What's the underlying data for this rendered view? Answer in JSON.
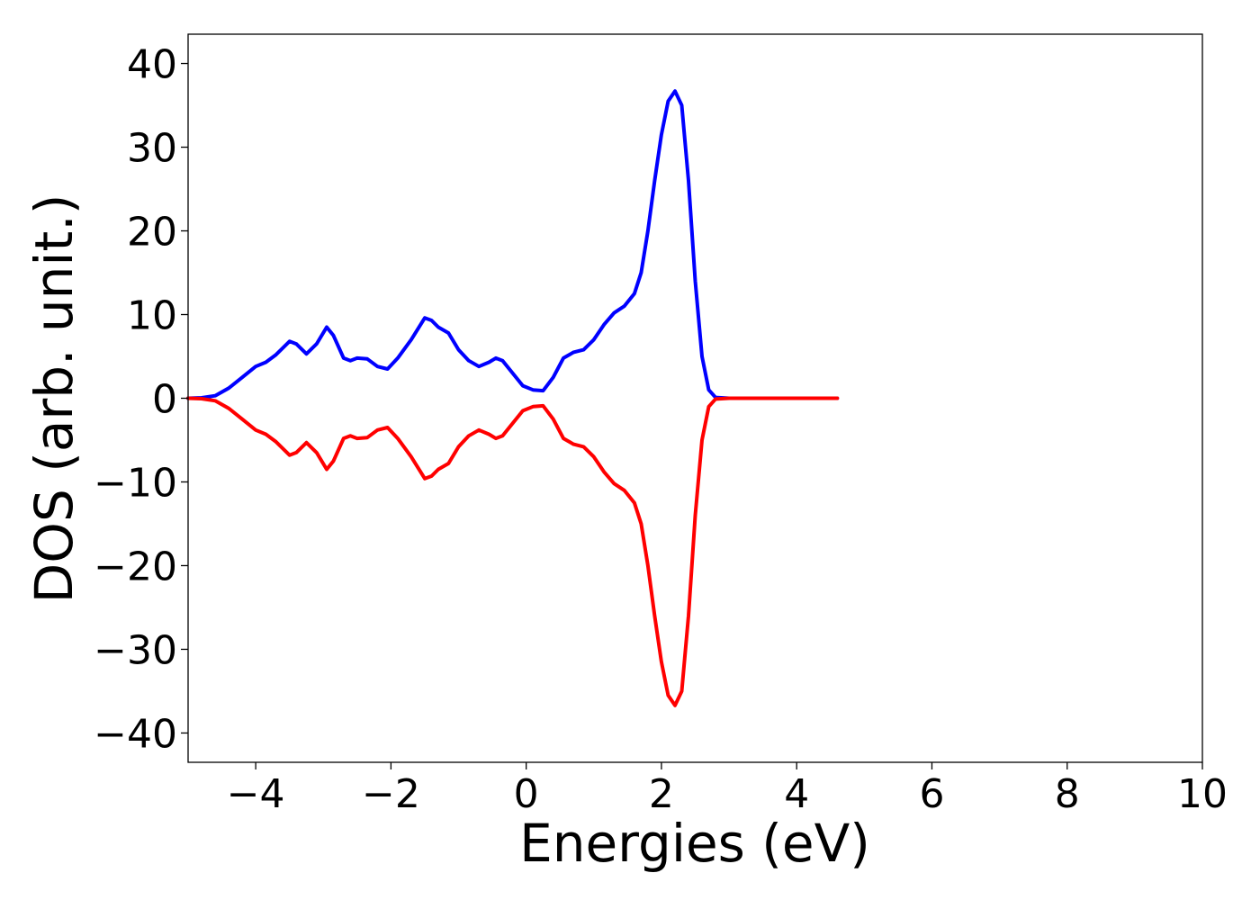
{
  "chart_data": {
    "type": "line",
    "title": "",
    "xlabel": "Energies (eV)",
    "ylabel": "DOS (arb. unit.)",
    "xlim": [
      -5,
      10
    ],
    "ylim": [
      -43.5,
      43.5
    ],
    "x_ticks": [
      "−4",
      "−2",
      "0",
      "2",
      "4",
      "6",
      "8",
      "10"
    ],
    "x_tick_values": [
      -4,
      -2,
      0,
      2,
      4,
      6,
      8,
      10
    ],
    "y_ticks": [
      "−40",
      "−30",
      "−20",
      "−10",
      "0",
      "10",
      "20",
      "30",
      "40"
    ],
    "y_tick_values": [
      -40,
      -30,
      -20,
      -10,
      0,
      10,
      20,
      30,
      40
    ],
    "grid": false,
    "legend": "none",
    "series": [
      {
        "color": "#0000ff",
        "x": [
          -5.0,
          -4.8,
          -4.6,
          -4.4,
          -4.2,
          -4.0,
          -3.85,
          -3.7,
          -3.5,
          -3.4,
          -3.25,
          -3.1,
          -2.95,
          -2.85,
          -2.7,
          -2.6,
          -2.5,
          -2.35,
          -2.2,
          -2.05,
          -1.9,
          -1.7,
          -1.5,
          -1.4,
          -1.3,
          -1.15,
          -1.0,
          -0.85,
          -0.7,
          -0.55,
          -0.45,
          -0.35,
          -0.2,
          -0.05,
          0.1,
          0.25,
          0.4,
          0.55,
          0.7,
          0.85,
          1.0,
          1.15,
          1.3,
          1.45,
          1.6,
          1.7,
          1.8,
          1.9,
          2.0,
          2.1,
          2.2,
          2.3,
          2.4,
          2.5,
          2.6,
          2.7,
          2.8,
          3.0,
          3.5,
          4.0,
          4.6
        ],
        "y": [
          0.0,
          0.05,
          0.3,
          1.2,
          2.5,
          3.8,
          4.3,
          5.2,
          6.8,
          6.5,
          5.3,
          6.5,
          8.5,
          7.5,
          4.8,
          4.5,
          4.8,
          4.7,
          3.8,
          3.5,
          4.8,
          7.0,
          9.6,
          9.3,
          8.5,
          7.8,
          5.8,
          4.5,
          3.8,
          4.3,
          4.8,
          4.5,
          3.0,
          1.5,
          1.0,
          0.9,
          2.5,
          4.8,
          5.5,
          5.8,
          7.0,
          8.8,
          10.2,
          11.0,
          12.5,
          15.0,
          20.0,
          26.0,
          31.5,
          35.5,
          36.7,
          35.0,
          26.0,
          14.0,
          5.0,
          1.0,
          0.1,
          0.0,
          0.0,
          0.0,
          0.0
        ]
      },
      {
        "color": "#ff0000",
        "x": [
          -5.0,
          -4.8,
          -4.6,
          -4.4,
          -4.2,
          -4.0,
          -3.85,
          -3.7,
          -3.5,
          -3.4,
          -3.25,
          -3.1,
          -2.95,
          -2.85,
          -2.7,
          -2.6,
          -2.5,
          -2.35,
          -2.2,
          -2.05,
          -1.9,
          -1.7,
          -1.5,
          -1.4,
          -1.3,
          -1.15,
          -1.0,
          -0.85,
          -0.7,
          -0.55,
          -0.45,
          -0.35,
          -0.2,
          -0.05,
          0.1,
          0.25,
          0.4,
          0.55,
          0.7,
          0.85,
          1.0,
          1.15,
          1.3,
          1.45,
          1.6,
          1.7,
          1.8,
          1.9,
          2.0,
          2.1,
          2.2,
          2.3,
          2.4,
          2.5,
          2.6,
          2.7,
          2.8,
          3.0,
          3.5,
          4.0,
          4.6
        ],
        "y": [
          0.0,
          -0.05,
          -0.3,
          -1.2,
          -2.5,
          -3.8,
          -4.3,
          -5.2,
          -6.8,
          -6.5,
          -5.3,
          -6.5,
          -8.5,
          -7.5,
          -4.8,
          -4.5,
          -4.8,
          -4.7,
          -3.8,
          -3.5,
          -4.8,
          -7.0,
          -9.6,
          -9.3,
          -8.5,
          -7.8,
          -5.8,
          -4.5,
          -3.8,
          -4.3,
          -4.8,
          -4.5,
          -3.0,
          -1.5,
          -1.0,
          -0.9,
          -2.5,
          -4.8,
          -5.5,
          -5.8,
          -7.0,
          -8.8,
          -10.2,
          -11.0,
          -12.5,
          -15.0,
          -20.0,
          -26.0,
          -31.5,
          -35.5,
          -36.7,
          -35.0,
          -26.0,
          -14.0,
          -5.0,
          -1.0,
          -0.1,
          0.0,
          0.0,
          0.0,
          0.0
        ]
      }
    ]
  }
}
